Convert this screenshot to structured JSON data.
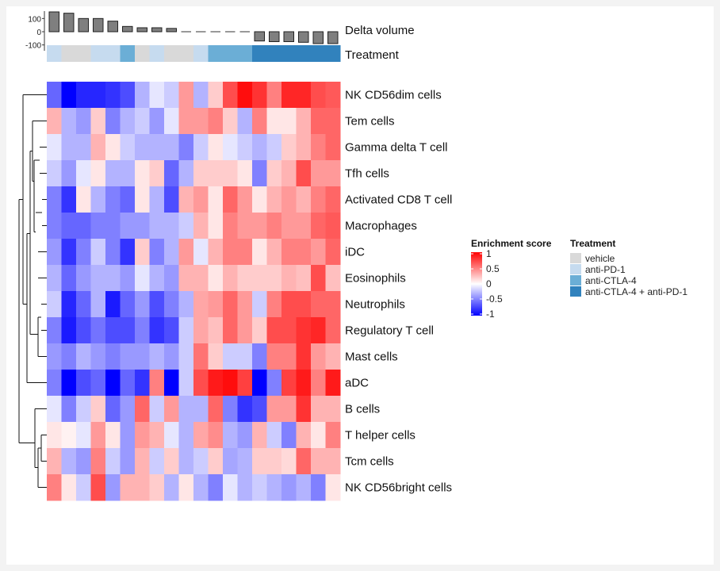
{
  "chart_data": {
    "type": "heatmap",
    "rows": [
      "NK CD56dim cells",
      "Tem cells",
      "Gamma delta T cell",
      "Tfh cells",
      "Activated CD8 T cell",
      "Macrophages",
      "iDC",
      "Eosinophils",
      "Neutrophils",
      "Regulatory T cell",
      "Mast cells",
      "aDC",
      "B cells",
      "T helper cells",
      "Tcm cells",
      "NK CD56bright cells"
    ],
    "columns": 20,
    "values": [
      [
        -0.6,
        -1,
        -0.85,
        -0.85,
        -0.8,
        -0.7,
        -0.3,
        -0.1,
        -0.2,
        0.4,
        -0.3,
        0.2,
        0.7,
        0.95,
        0.8,
        0.5,
        0.85,
        0.85,
        0.7,
        0.65
      ],
      [
        0.3,
        -0.3,
        -0.4,
        0.2,
        -0.5,
        -0.3,
        -0.2,
        -0.4,
        -0.1,
        0.4,
        0.4,
        0.5,
        0.2,
        -0.3,
        0.5,
        0.1,
        0.1,
        0.3,
        0.6,
        0.6
      ],
      [
        -0.1,
        -0.3,
        -0.3,
        0.3,
        0.1,
        -0.2,
        -0.3,
        -0.3,
        -0.3,
        -0.5,
        -0.2,
        0.1,
        -0.1,
        -0.2,
        -0.3,
        -0.2,
        0.2,
        0.3,
        0.5,
        0.6
      ],
      [
        -0.2,
        -0.4,
        -0.1,
        0.1,
        -0.3,
        -0.3,
        0.1,
        0.2,
        -0.6,
        -0.3,
        0.2,
        0.2,
        0.2,
        0.1,
        -0.5,
        0.2,
        0.3,
        0.7,
        0.4,
        0.4
      ],
      [
        -0.5,
        -0.8,
        0.1,
        -0.3,
        -0.5,
        -0.6,
        0.1,
        -0.3,
        -0.7,
        0.3,
        0.4,
        0.1,
        0.6,
        0.4,
        0.1,
        0.3,
        0.4,
        0.3,
        0.5,
        0.6
      ],
      [
        -0.5,
        -0.6,
        -0.6,
        -0.5,
        -0.5,
        -0.4,
        -0.4,
        -0.3,
        -0.3,
        -0.2,
        0.3,
        0.1,
        0.5,
        0.4,
        0.4,
        0.5,
        0.4,
        0.4,
        0.6,
        0.65
      ],
      [
        -0.4,
        -0.8,
        -0.5,
        -0.2,
        -0.5,
        -0.8,
        0.2,
        -0.5,
        -0.3,
        0.4,
        -0.1,
        0.3,
        0.5,
        0.5,
        0.1,
        0.3,
        0.5,
        0.5,
        0.4,
        0.6
      ],
      [
        -0.3,
        -0.6,
        -0.4,
        -0.3,
        -0.3,
        -0.4,
        -0.1,
        -0.3,
        -0.4,
        0.3,
        0.3,
        0.1,
        0.3,
        0.2,
        0.2,
        0.2,
        0.3,
        0.25,
        0.7,
        0.25
      ],
      [
        -0.2,
        -0.85,
        -0.6,
        -0.3,
        -0.9,
        -0.6,
        -0.4,
        -0.7,
        -0.5,
        -0.3,
        0.35,
        0.4,
        0.6,
        0.4,
        -0.2,
        0.5,
        0.7,
        0.7,
        0.6,
        0.6
      ],
      [
        -0.5,
        -0.9,
        -0.7,
        -0.55,
        -0.7,
        -0.7,
        -0.5,
        -0.8,
        -0.7,
        -0.2,
        0.35,
        0.25,
        0.6,
        0.4,
        0.2,
        0.7,
        0.7,
        0.8,
        0.85,
        0.6
      ],
      [
        -0.4,
        -0.5,
        -0.3,
        -0.4,
        -0.5,
        -0.4,
        -0.4,
        -0.3,
        -0.4,
        -0.2,
        0.55,
        0.2,
        -0.2,
        -0.2,
        -0.5,
        0.5,
        0.5,
        0.8,
        0.4,
        0.3
      ],
      [
        -0.5,
        -1,
        -0.7,
        -0.6,
        -1,
        -0.6,
        -0.8,
        0.5,
        -1,
        -0.2,
        0.7,
        0.9,
        0.95,
        0.75,
        -1,
        -0.5,
        0.75,
        0.9,
        0.5,
        0.9
      ],
      [
        -0.1,
        -0.5,
        -0.2,
        0.2,
        -0.6,
        -0.4,
        0.6,
        -0.2,
        0.4,
        -0.3,
        -0.3,
        0.6,
        -0.5,
        -0.8,
        -0.7,
        0.4,
        0.4,
        0.8,
        0.3,
        0.3
      ],
      [
        0.1,
        0.05,
        -0.1,
        0.4,
        0.1,
        -0.4,
        0.4,
        0.3,
        -0.1,
        -0.3,
        0.35,
        0.45,
        -0.3,
        -0.4,
        0.3,
        -0.2,
        -0.5,
        0.3,
        0.1,
        0.5
      ],
      [
        0.3,
        -0.3,
        -0.4,
        0.5,
        -0.2,
        -0.4,
        0.3,
        -0.2,
        0.2,
        -0.3,
        -0.2,
        0.2,
        -0.35,
        -0.3,
        0.2,
        0.2,
        0.15,
        0.6,
        0.3,
        0.3
      ],
      [
        0.5,
        0.1,
        -0.2,
        0.7,
        -0.4,
        0.3,
        0.3,
        0.2,
        -0.3,
        0.1,
        -0.3,
        -0.5,
        -0.1,
        -0.3,
        -0.2,
        -0.3,
        -0.4,
        -0.3,
        -0.5,
        0.1
      ]
    ],
    "delta_volume": {
      "label": "Delta volume",
      "ticks": [
        "100",
        "0",
        "-100"
      ],
      "ylim": [
        -150,
        150
      ],
      "values": [
        150,
        140,
        100,
        100,
        80,
        40,
        30,
        30,
        25,
        0,
        0,
        0,
        0,
        0,
        -70,
        -75,
        -75,
        -80,
        -90,
        -90
      ]
    },
    "treatment_annotation": {
      "label": "Treatment",
      "values": [
        "anti-PD-1",
        "vehicle",
        "vehicle",
        "anti-PD-1",
        "anti-PD-1",
        "anti-CTLA-4",
        "vehicle",
        "anti-PD-1",
        "vehicle",
        "vehicle",
        "anti-PD-1",
        "anti-CTLA-4",
        "anti-CTLA-4",
        "anti-CTLA-4",
        "anti-CTLA-4 + anti-PD-1",
        "anti-CTLA-4 + anti-PD-1",
        "anti-CTLA-4 + anti-PD-1",
        "anti-CTLA-4 + anti-PD-1",
        "anti-CTLA-4 + anti-PD-1",
        "anti-CTLA-4 + anti-PD-1"
      ]
    },
    "color_scale": {
      "low": "#0000ff",
      "mid": "#ffffff",
      "high": "#ff0000",
      "min": -1,
      "max": 1
    },
    "legend_enrichment": {
      "title": "Enrichment score",
      "ticks": [
        "1",
        "0.5",
        "0",
        "-0.5",
        "-1"
      ]
    },
    "legend_treatment": {
      "title": "Treatment",
      "entries": [
        {
          "label": "vehicle",
          "color": "#d9d9d9"
        },
        {
          "label": "anti-PD-1",
          "color": "#c6dbef"
        },
        {
          "label": "anti-CTLA-4",
          "color": "#6baed6"
        },
        {
          "label": "anti-CTLA-4 + anti-PD-1",
          "color": "#3182bd"
        }
      ]
    }
  }
}
